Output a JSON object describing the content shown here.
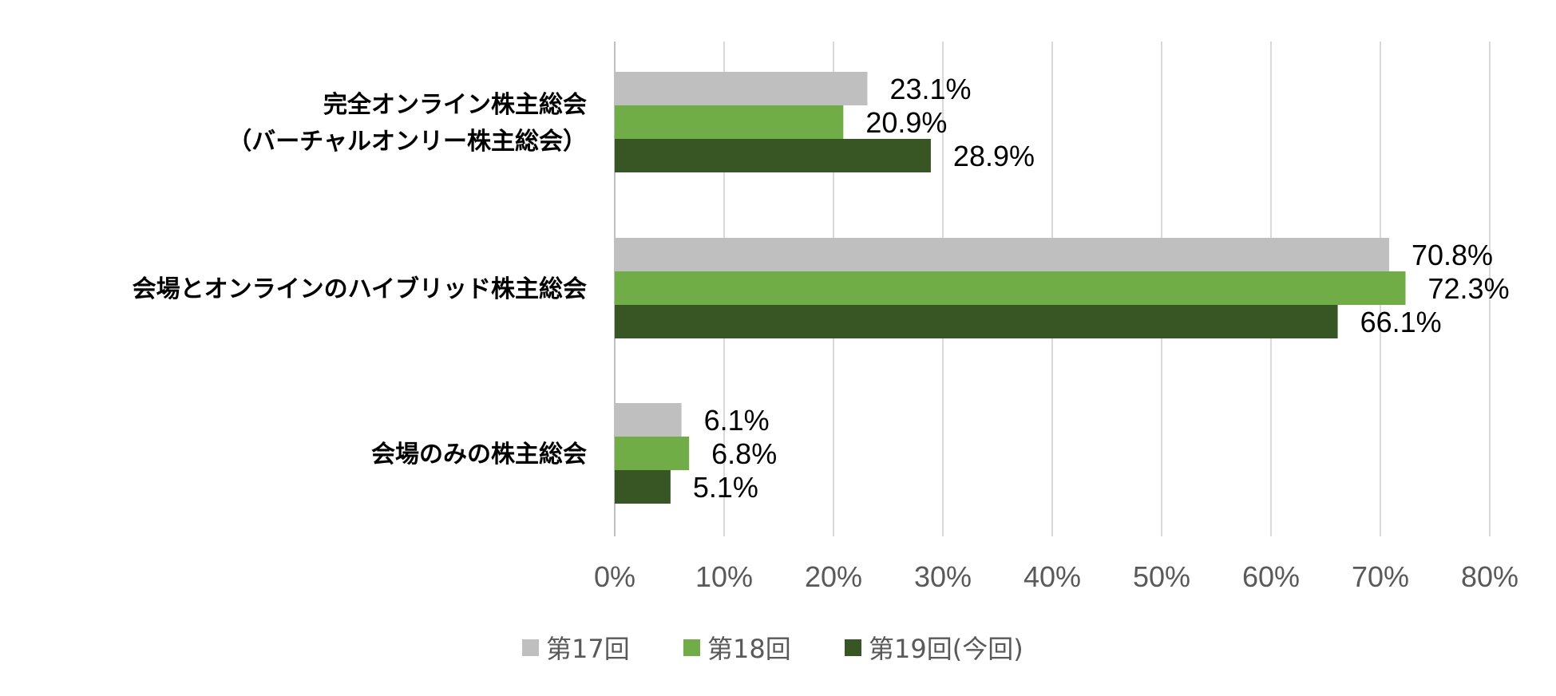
{
  "chart_data": {
    "type": "bar",
    "orientation": "horizontal",
    "categories": [
      [
        "完全オンライン株主総会",
        "（バーチャルオンリー株主総会）"
      ],
      [
        "会場とオンラインのハイブリッド株主総会"
      ],
      [
        "会場のみの株主総会"
      ]
    ],
    "series": [
      {
        "name": "第17回",
        "color": "#bfbfbf",
        "values": [
          23.1,
          70.8,
          6.1
        ],
        "labels": [
          "23.1%",
          "70.8%",
          "6.1%"
        ]
      },
      {
        "name": "第18回",
        "color": "#70ad47",
        "values": [
          20.9,
          72.3,
          6.8
        ],
        "labels": [
          "20.9%",
          "72.3%",
          "6.8%"
        ]
      },
      {
        "name": "第19回(今回)",
        "color": "#375623",
        "values": [
          28.9,
          66.1,
          5.1
        ],
        "labels": [
          "28.9%",
          "66.1%",
          "5.1%"
        ]
      }
    ],
    "xlim": [
      0,
      80
    ],
    "xticks": [
      0,
      10,
      20,
      30,
      40,
      50,
      60,
      70,
      80
    ],
    "xtick_labels": [
      "0%",
      "10%",
      "20%",
      "30%",
      "40%",
      "50%",
      "60%",
      "70%",
      "80%"
    ],
    "grid": "vertical",
    "legend": "bottom"
  }
}
